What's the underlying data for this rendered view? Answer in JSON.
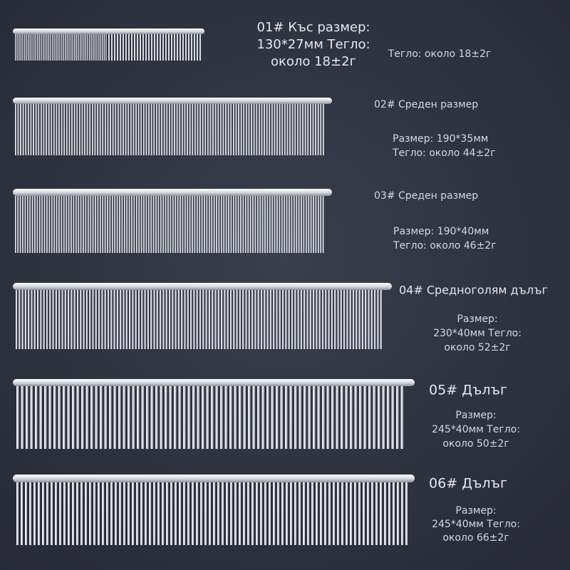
{
  "items": [
    {
      "title": [
        "01# Къс размер:",
        "130*27мм Тегло:",
        "около 18±2г"
      ],
      "details": [
        "Тегло: около 18±2г"
      ]
    },
    {
      "title": [
        "02# Среден размер"
      ],
      "details": [
        "Размер: 190*35мм",
        "Тегло: около 44±2г"
      ]
    },
    {
      "title": [
        "03# Среден размер"
      ],
      "details": [
        "Размер: 190*40мм",
        "Тегло: около 46±2г"
      ]
    },
    {
      "title": [
        "04# Средноголям дълъг"
      ],
      "details": [
        "Размер:",
        "230*40мм Тегло:",
        "около 52±2г"
      ]
    },
    {
      "title": [
        "05# Дълъг"
      ],
      "details": [
        "Размер:",
        "245*40мм Тегло:",
        "около 50±2г"
      ]
    },
    {
      "title": [
        "06# Дълъг"
      ],
      "details": [
        "Размер:",
        "245*40мм Тегло:",
        "около 66±2г"
      ]
    }
  ]
}
